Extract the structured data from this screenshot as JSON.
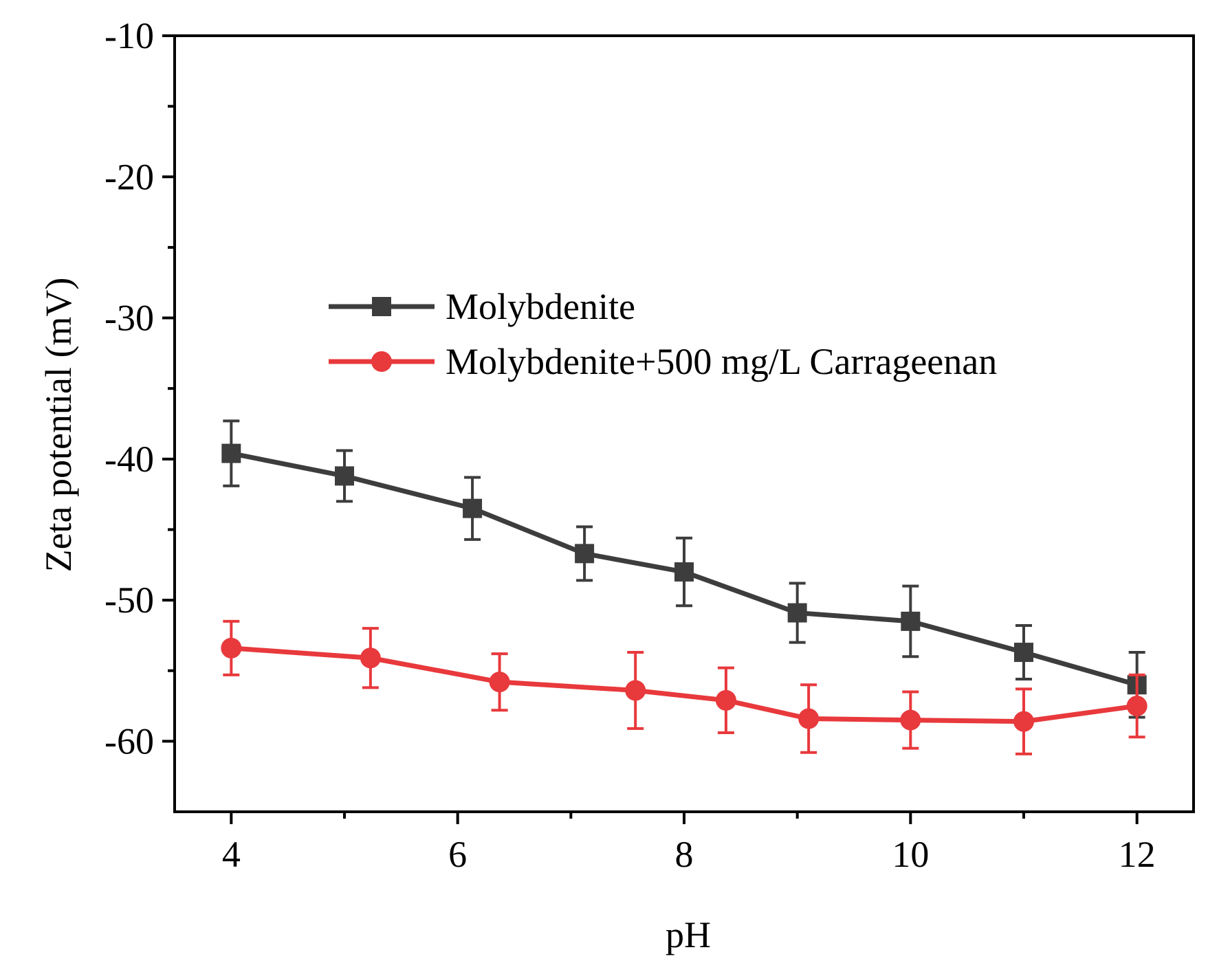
{
  "chart_data": {
    "type": "line",
    "title": "",
    "xlabel": "pH",
    "ylabel": "Zeta potential (mV)",
    "xlim": [
      3.5,
      12.5
    ],
    "ylim": [
      -65,
      -10
    ],
    "x_ticks": [
      4,
      6,
      8,
      10,
      12
    ],
    "x_tick_labels": [
      "4",
      "6",
      "8",
      "10",
      "12"
    ],
    "x_minor_ticks": [
      5,
      7,
      9,
      11
    ],
    "y_ticks": [
      -10,
      -20,
      -30,
      -40,
      -50,
      -60
    ],
    "y_tick_labels": [
      "-10",
      "-20",
      "-30",
      "-40",
      "-50",
      "-60"
    ],
    "y_minor_ticks": [
      -15,
      -25,
      -35,
      -45,
      -55
    ],
    "legend_position": "center",
    "series": [
      {
        "name": "Molybdenite",
        "color": "#3d3d3d",
        "marker": "square",
        "x": [
          4,
          5,
          6.13,
          7.12,
          8,
          9,
          10,
          11,
          12
        ],
        "y": [
          -39.6,
          -41.2,
          -43.5,
          -46.7,
          -48.0,
          -50.9,
          -51.5,
          -53.7,
          -56.0
        ],
        "error": [
          2.3,
          1.8,
          2.2,
          1.9,
          2.4,
          2.1,
          2.5,
          1.9,
          2.3
        ]
      },
      {
        "name": "Molybdenite+500 mg/L Carrageenan",
        "color": "#e8393c",
        "marker": "circle",
        "x": [
          4,
          5.23,
          6.37,
          7.57,
          8.37,
          9.1,
          10,
          11,
          12
        ],
        "y": [
          -53.4,
          -54.1,
          -55.8,
          -56.4,
          -57.1,
          -58.4,
          -58.5,
          -58.6,
          -57.5
        ],
        "error": [
          1.9,
          2.1,
          2.0,
          2.7,
          2.3,
          2.4,
          2.0,
          2.3,
          2.2
        ]
      }
    ]
  }
}
